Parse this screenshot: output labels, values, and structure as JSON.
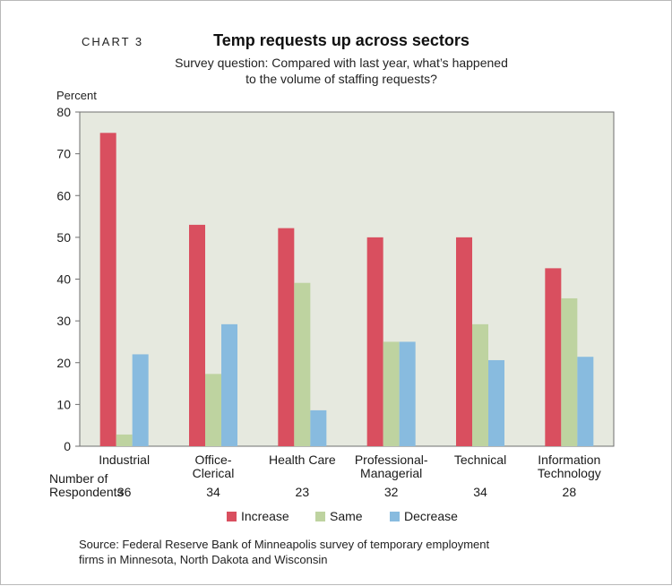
{
  "chart_label": "CHART 3",
  "chart_data": {
    "type": "bar",
    "title": "Temp requests up across sectors",
    "subtitle_lines": [
      "Survey question: Compared with last year, what’s happened",
      "to the volume of staffing requests?"
    ],
    "ylabel": "Percent",
    "xlabel": "",
    "ylim": [
      0,
      80
    ],
    "yticks": [
      0,
      10,
      20,
      30,
      40,
      50,
      60,
      70,
      80
    ],
    "grid": false,
    "legend_position": "bottom",
    "categories": [
      [
        "Industrial"
      ],
      [
        "Office-",
        "Clerical"
      ],
      [
        "Health Care"
      ],
      [
        "Professional-",
        "Managerial"
      ],
      [
        "Technical"
      ],
      [
        "Information",
        "Technology"
      ]
    ],
    "series": [
      {
        "name": "Increase",
        "color": "#d94f5f",
        "values": [
          75,
          53,
          52.2,
          50,
          50,
          42.6
        ]
      },
      {
        "name": "Same",
        "color": "#bed3a0",
        "values": [
          2.8,
          17.3,
          39.1,
          25,
          29.2,
          35.4
        ]
      },
      {
        "name": "Decrease",
        "color": "#88bbdf",
        "values": [
          22,
          29.2,
          8.6,
          25,
          20.6,
          21.4
        ]
      }
    ],
    "respondents_label": [
      "Number of",
      "Respondents"
    ],
    "respondents": [
      "36",
      "34",
      "23",
      "32",
      "34",
      "28"
    ],
    "source_lines": [
      "Source: Federal Reserve Bank of Minneapolis survey of temporary employment",
      "firms in Minnesota, North Dakota and Wisconsin"
    ],
    "plot_background": "#e6e9df"
  }
}
